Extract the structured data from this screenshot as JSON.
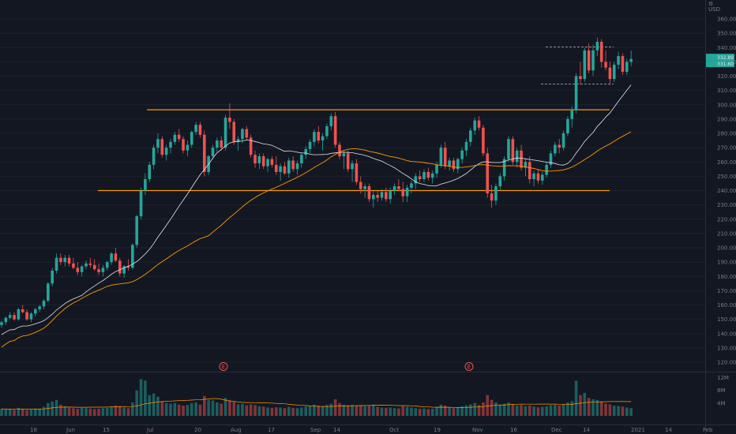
{
  "chart_data": {
    "type": "candlestick",
    "currency": "USD",
    "price_axis": {
      "ticks": [
        120,
        130,
        140,
        150,
        160,
        170,
        180,
        190,
        200,
        210,
        220,
        230,
        240,
        250,
        260,
        270,
        280,
        290,
        300,
        310,
        320,
        330,
        340,
        350,
        360
      ]
    },
    "volume_axis": {
      "ticks": [
        {
          "label": "4M",
          "value": 4
        },
        {
          "label": "8M",
          "value": 8
        },
        {
          "label": "12M",
          "value": 12
        }
      ]
    },
    "time_axis": {
      "labels": [
        "18",
        "Jun",
        "15",
        "Jul",
        "20",
        "Aug",
        "17",
        "Sep",
        "14",
        "Oct",
        "19",
        "Nov",
        "16",
        "Dec",
        "14",
        "2021",
        "14",
        "Feb"
      ]
    },
    "last_price": "332.89",
    "last_price_sub": "331.60",
    "earnings_markers": [
      "E",
      "E"
    ],
    "horizontal_levels": [
      {
        "value": 296.5,
        "color": "#ff9800",
        "style": "solid",
        "from": "Jul",
        "to": "Dec"
      },
      {
        "value": 240,
        "color": "#ff9800",
        "style": "solid",
        "from": "Jun",
        "to": "Dec"
      },
      {
        "value": 340.5,
        "color": "#b2b5be",
        "style": "dashed",
        "from": "Dec",
        "to": "Dec"
      },
      {
        "value": 314.5,
        "color": "#b2b5be",
        "style": "dashed",
        "from": "Dec",
        "to": "Dec"
      }
    ],
    "colors": {
      "up": "#26a69a",
      "down": "#ef5350",
      "ma_fast": "#e0e3eb",
      "ma_slow": "#ff9800",
      "background": "#131722"
    },
    "candles": [
      [
        146,
        149,
        144,
        148,
        2.2
      ],
      [
        148,
        152,
        146,
        151,
        2
      ],
      [
        151,
        155,
        150,
        153,
        2.1
      ],
      [
        153,
        155,
        149,
        150,
        1.9
      ],
      [
        150,
        158,
        149,
        157,
        2.5
      ],
      [
        157,
        160,
        154,
        155,
        2.1
      ],
      [
        155,
        157,
        149,
        150,
        1.8
      ],
      [
        150,
        155,
        148,
        154,
        2
      ],
      [
        154,
        158,
        152,
        157,
        2.3
      ],
      [
        157,
        160,
        155,
        159,
        2.2
      ],
      [
        159,
        164,
        157,
        163,
        2.8
      ],
      [
        163,
        176,
        162,
        175,
        4
      ],
      [
        175,
        186,
        173,
        184,
        4.5
      ],
      [
        184,
        196,
        182,
        193,
        5
      ],
      [
        193,
        196,
        188,
        190,
        3.5
      ],
      [
        190,
        195,
        187,
        193,
        3
      ],
      [
        193,
        195,
        187,
        189,
        2.6
      ],
      [
        189,
        193,
        185,
        186,
        2.4
      ],
      [
        186,
        190,
        181,
        183,
        2.2
      ],
      [
        183,
        188,
        180,
        187,
        2.5
      ],
      [
        187,
        191,
        185,
        189,
        2.4
      ],
      [
        189,
        193,
        186,
        188,
        2.3
      ],
      [
        188,
        192,
        184,
        185,
        2.1
      ],
      [
        185,
        189,
        181,
        183,
        2.2
      ],
      [
        183,
        188,
        180,
        186,
        2.4
      ],
      [
        186,
        191,
        184,
        190,
        2.5
      ],
      [
        190,
        197,
        188,
        196,
        3
      ],
      [
        196,
        200,
        190,
        191,
        3.2
      ],
      [
        191,
        193,
        180,
        182,
        3.1
      ],
      [
        182,
        188,
        179,
        187,
        2.6
      ],
      [
        187,
        192,
        184,
        186,
        2.4
      ],
      [
        186,
        203,
        185,
        202,
        4.2
      ],
      [
        202,
        223,
        200,
        222,
        8
      ],
      [
        222,
        242,
        220,
        240,
        11.5
      ],
      [
        240,
        252,
        237,
        248,
        11
      ],
      [
        248,
        260,
        246,
        258,
        6.5
      ],
      [
        258,
        272,
        255,
        270,
        7
      ],
      [
        270,
        280,
        266,
        276,
        6
      ],
      [
        276,
        278,
        263,
        265,
        4.5
      ],
      [
        265,
        272,
        261,
        270,
        4
      ],
      [
        270,
        276,
        266,
        274,
        3.8
      ],
      [
        274,
        281,
        272,
        279,
        4
      ],
      [
        279,
        283,
        274,
        276,
        3.5
      ],
      [
        276,
        278,
        266,
        268,
        3.2
      ],
      [
        268,
        275,
        264,
        272,
        3.4
      ],
      [
        272,
        282,
        270,
        281,
        4
      ],
      [
        281,
        288,
        279,
        286,
        4.2
      ],
      [
        286,
        288,
        277,
        279,
        3.5
      ],
      [
        279,
        282,
        250,
        253,
        6.2
      ],
      [
        253,
        265,
        251,
        264,
        5
      ],
      [
        264,
        272,
        262,
        270,
        4.8
      ],
      [
        270,
        277,
        267,
        275,
        4.2
      ],
      [
        275,
        278,
        268,
        270,
        3.8
      ],
      [
        270,
        293,
        268,
        291,
        5.6
      ],
      [
        291,
        301,
        283,
        288,
        5
      ],
      [
        288,
        290,
        272,
        274,
        4.5
      ],
      [
        274,
        278,
        268,
        276,
        3.6
      ],
      [
        276,
        284,
        273,
        283,
        3.8
      ],
      [
        283,
        285,
        275,
        277,
        3.3
      ],
      [
        277,
        279,
        263,
        265,
        3.6
      ],
      [
        265,
        268,
        256,
        259,
        3.4
      ],
      [
        259,
        266,
        255,
        264,
        3
      ],
      [
        264,
        266,
        255,
        257,
        2.9
      ],
      [
        257,
        263,
        253,
        262,
        2.6
      ],
      [
        262,
        264,
        256,
        258,
        2.5
      ],
      [
        258,
        264,
        251,
        253,
        2.7
      ],
      [
        253,
        259,
        247,
        257,
        2.6
      ],
      [
        257,
        260,
        251,
        252,
        2.4
      ],
      [
        252,
        263,
        249,
        261,
        2.8
      ],
      [
        261,
        264,
        253,
        255,
        2.5
      ],
      [
        255,
        261,
        251,
        259,
        2.4
      ],
      [
        259,
        266,
        256,
        265,
        2.6
      ],
      [
        265,
        271,
        262,
        269,
        2.9
      ],
      [
        269,
        276,
        266,
        274,
        3.1
      ],
      [
        274,
        283,
        271,
        281,
        3.5
      ],
      [
        281,
        285,
        273,
        275,
        3.2
      ],
      [
        275,
        280,
        268,
        278,
        2.9
      ],
      [
        278,
        287,
        276,
        285,
        3.4
      ],
      [
        285,
        294,
        282,
        292,
        3.8
      ],
      [
        292,
        295,
        270,
        272,
        5.2
      ],
      [
        272,
        274,
        262,
        264,
        4
      ],
      [
        264,
        268,
        255,
        266,
        3.5
      ],
      [
        266,
        268,
        253,
        255,
        3.3
      ],
      [
        255,
        261,
        246,
        259,
        3.5
      ],
      [
        259,
        262,
        244,
        246,
        3.2
      ],
      [
        246,
        250,
        238,
        241,
        3.3
      ],
      [
        241,
        245,
        235,
        243,
        3
      ],
      [
        243,
        245,
        232,
        234,
        3.2
      ],
      [
        234,
        240,
        228,
        237,
        3.5
      ],
      [
        237,
        240,
        232,
        235,
        2.8
      ],
      [
        235,
        241,
        233,
        239,
        2.6
      ],
      [
        239,
        242,
        232,
        234,
        2.5
      ],
      [
        234,
        242,
        231,
        240,
        2.6
      ],
      [
        240,
        245,
        237,
        243,
        2.4
      ],
      [
        243,
        248,
        240,
        241,
        2.3
      ],
      [
        241,
        246,
        232,
        236,
        3
      ],
      [
        236,
        244,
        232,
        242,
        2.8
      ],
      [
        242,
        247,
        238,
        245,
        2.6
      ],
      [
        245,
        252,
        241,
        250,
        2.4
      ],
      [
        250,
        254,
        246,
        248,
        2.2
      ],
      [
        248,
        255,
        246,
        253,
        2.3
      ],
      [
        253,
        256,
        247,
        249,
        2.1
      ],
      [
        249,
        254,
        245,
        252,
        2.2
      ],
      [
        252,
        260,
        249,
        258,
        2.8
      ],
      [
        258,
        272,
        256,
        270,
        3.5
      ],
      [
        270,
        274,
        255,
        257,
        3.2
      ],
      [
        257,
        263,
        254,
        261,
        2.6
      ],
      [
        261,
        263,
        253,
        255,
        2.4
      ],
      [
        255,
        263,
        252,
        262,
        2.7
      ],
      [
        262,
        270,
        259,
        268,
        3
      ],
      [
        268,
        276,
        264,
        274,
        3.3
      ],
      [
        274,
        284,
        271,
        282,
        3.6
      ],
      [
        282,
        291,
        279,
        289,
        4
      ],
      [
        289,
        292,
        282,
        284,
        3.4
      ],
      [
        284,
        286,
        264,
        266,
        4.2
      ],
      [
        266,
        270,
        235,
        238,
        6.5
      ],
      [
        238,
        244,
        228,
        233,
        5
      ],
      [
        233,
        245,
        230,
        243,
        4.2
      ],
      [
        243,
        252,
        240,
        250,
        3.6
      ],
      [
        250,
        264,
        247,
        262,
        3.8
      ],
      [
        262,
        278,
        260,
        276,
        4.2
      ],
      [
        276,
        278,
        258,
        260,
        3.6
      ],
      [
        260,
        270,
        256,
        268,
        3.2
      ],
      [
        268,
        272,
        254,
        256,
        3.4
      ],
      [
        256,
        262,
        250,
        260,
        3
      ],
      [
        260,
        264,
        245,
        248,
        3.2
      ],
      [
        248,
        254,
        243,
        252,
        2.9
      ],
      [
        252,
        255,
        245,
        247,
        2.7
      ],
      [
        247,
        253,
        244,
        251,
        2.8
      ],
      [
        251,
        260,
        249,
        258,
        3
      ],
      [
        258,
        268,
        256,
        266,
        3.3
      ],
      [
        266,
        274,
        264,
        272,
        3.4
      ],
      [
        272,
        276,
        266,
        270,
        3.2
      ],
      [
        270,
        282,
        268,
        280,
        3.6
      ],
      [
        280,
        292,
        278,
        290,
        4.2
      ],
      [
        290,
        299,
        284,
        296,
        4.6
      ],
      [
        296,
        322,
        294,
        320,
        11
      ],
      [
        320,
        330,
        314,
        318,
        6.5
      ],
      [
        318,
        340,
        316,
        338,
        7.2
      ],
      [
        338,
        343,
        322,
        324,
        5.6
      ],
      [
        324,
        342,
        320,
        338,
        5.2
      ],
      [
        338,
        347,
        334,
        344,
        5
      ],
      [
        344,
        346,
        326,
        330,
        4.4
      ],
      [
        330,
        338,
        324,
        326,
        3.8
      ],
      [
        326,
        330,
        314,
        318,
        3.6
      ],
      [
        318,
        330,
        316,
        328,
        3.2
      ],
      [
        328,
        337,
        325,
        334,
        3.1
      ],
      [
        334,
        336,
        321,
        323,
        2.9
      ],
      [
        323,
        332,
        321,
        330,
        2.6
      ],
      [
        330,
        338,
        327,
        332,
        2.4
      ]
    ]
  }
}
